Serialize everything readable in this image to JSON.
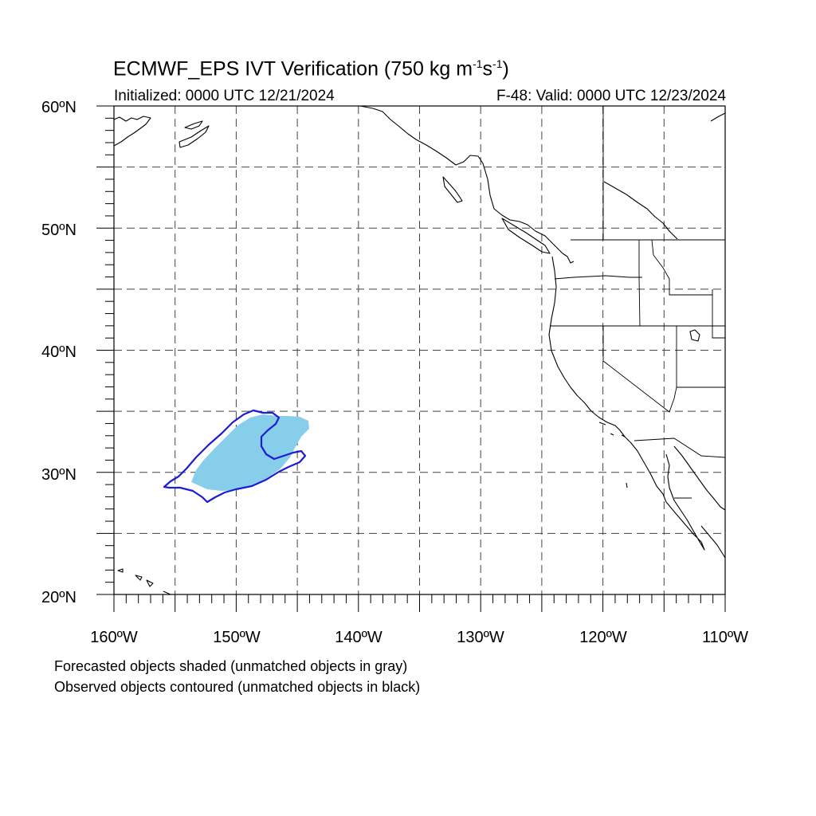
{
  "header": {
    "title_main": "ECMWF_EPS IVT Verification (750 kg m",
    "title_sup1": "-1",
    "title_mid": "s",
    "title_sup2": "-1",
    "title_end": ")",
    "initialized": "Initialized: 0000 UTC 12/21/2024",
    "valid": "F-48: Valid: 0000 UTC 12/23/2024"
  },
  "map": {
    "lat_labels": [
      "60ºN",
      "50ºN",
      "40ºN",
      "30ºN",
      "20ºN"
    ],
    "lon_labels": [
      "160ºW",
      "150ºW",
      "140ºW",
      "130ºW",
      "120ºW",
      "110ºW"
    ],
    "extent": {
      "lon_min": -160,
      "lon_max": -110,
      "lat_min": 20,
      "lat_max": 60
    },
    "colors": {
      "forecast_fill": "#87ceeb",
      "observed_contour": "#1c1cd4",
      "coastline": "#000000",
      "gridline": "#444444"
    }
  },
  "legend": {
    "line1": "Forecasted objects shaded (unmatched objects in gray)",
    "line2": "Observed objects contoured (unmatched objects in black)"
  }
}
